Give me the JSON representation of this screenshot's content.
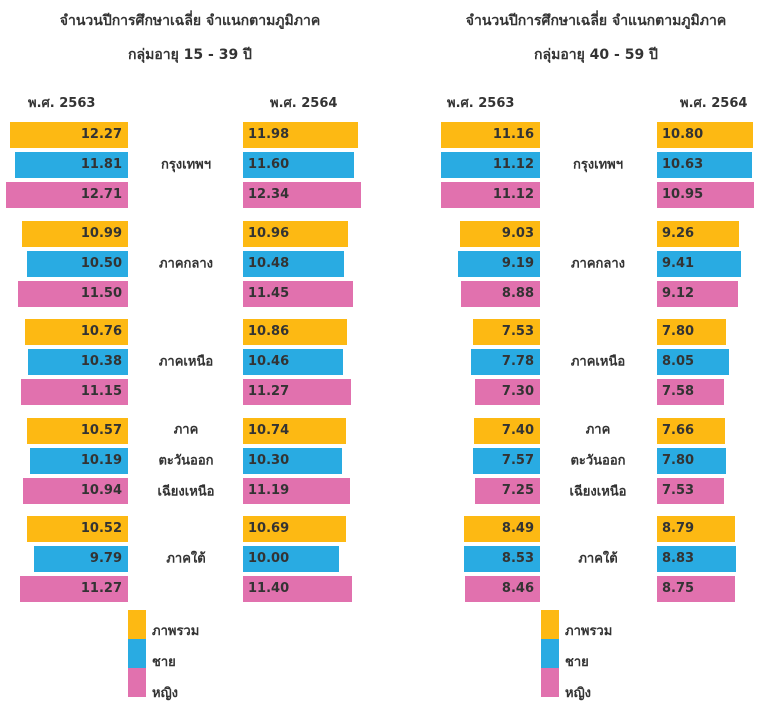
{
  "chart_data": [
    {
      "type": "butterfly-bar",
      "title": "จำนวนปีการศึกษาเฉลี่ย จำแนกตามภูมิภาค",
      "subtitle": "กลุ่มอายุ 15 - 39 ปี",
      "categories": [
        "กรุงเทพฯ",
        "ภาคกลาง",
        "ภาคเหนือ",
        "ภาค\nตะวันออก\nเฉียงเหนือ",
        "ภาคใต้"
      ],
      "legend": [
        {
          "name": "ภาพรวม",
          "color": "#fdb913"
        },
        {
          "name": "ชาย",
          "color": "#29abe2"
        },
        {
          "name": "หญิง",
          "color": "#e171ae"
        }
      ],
      "panels": [
        {
          "label": "พ.ศ. 2563",
          "series": [
            {
              "values": [
                12.27,
                10.99,
                10.76,
                10.57,
                10.52
              ],
              "value_labels": [
                "12.27",
                "10.99",
                "10.76",
                "10.57",
                "10.52"
              ]
            },
            {
              "values": [
                11.81,
                10.5,
                10.38,
                10.19,
                9.79
              ],
              "value_labels": [
                "11.81",
                "10.50",
                "10.38",
                "10.19",
                "9.79"
              ]
            },
            {
              "values": [
                12.71,
                11.5,
                11.15,
                10.94,
                11.27
              ],
              "value_labels": [
                "12.71",
                "11.50",
                "11.15",
                "10.94",
                "11.27"
              ]
            }
          ]
        },
        {
          "label": "พ.ศ. 2564",
          "series": [
            {
              "values": [
                11.98,
                10.96,
                10.86,
                10.74,
                10.69
              ],
              "value_labels": [
                "11.98",
                "10.96",
                "10.86",
                "10.74",
                "10.69"
              ]
            },
            {
              "values": [
                11.6,
                10.48,
                10.46,
                10.3,
                10
              ],
              "value_labels": [
                "11.60",
                "10.48",
                "10.46",
                "10.30",
                "10.00"
              ]
            },
            {
              "values": [
                12.34,
                11.45,
                11.27,
                11.19,
                11.4
              ],
              "value_labels": [
                "12.34",
                "11.45",
                "11.27",
                "11.19",
                "11.40"
              ]
            }
          ]
        }
      ]
    },
    {
      "type": "butterfly-bar",
      "title": "จำนวนปีการศึกษาเฉลี่ย จำแนกตามภูมิภาค",
      "subtitle": "กลุ่มอายุ 40 - 59 ปี",
      "categories": [
        "กรุงเทพฯ",
        "ภาคกลาง",
        "ภาคเหนือ",
        "ภาค\nตะวันออก\nเฉียงเหนือ",
        "ภาคใต้"
      ],
      "legend": [
        {
          "name": "ภาพรวม",
          "color": "#fdb913"
        },
        {
          "name": "ชาย",
          "color": "#29abe2"
        },
        {
          "name": "หญิง",
          "color": "#e171ae"
        }
      ],
      "panels": [
        {
          "label": "พ.ศ. 2563",
          "series": [
            {
              "values": [
                11.16,
                9.03,
                7.53,
                7.4,
                8.49
              ],
              "value_labels": [
                "11.16",
                "9.03",
                "7.53",
                "7.40",
                "8.49"
              ]
            },
            {
              "values": [
                11.12,
                9.19,
                7.78,
                7.57,
                8.53
              ],
              "value_labels": [
                "11.12",
                "9.19",
                "7.78",
                "7.57",
                "8.53"
              ]
            },
            {
              "values": [
                11.12,
                8.88,
                7.3,
                7.25,
                8.46
              ],
              "value_labels": [
                "11.12",
                "8.88",
                "7.30",
                "7.25",
                "8.46"
              ]
            }
          ]
        },
        {
          "label": "พ.ศ. 2564",
          "series": [
            {
              "values": [
                10.8,
                9.26,
                7.8,
                7.66,
                8.79
              ],
              "value_labels": [
                "10.80",
                "9.26",
                "7.80",
                "7.66",
                "8.79"
              ]
            },
            {
              "values": [
                10.63,
                9.41,
                8.05,
                7.8,
                8.83
              ],
              "value_labels": [
                "10.63",
                "9.41",
                "8.05",
                "7.80",
                "8.83"
              ]
            },
            {
              "values": [
                10.95,
                9.12,
                7.58,
                7.53,
                8.75
              ],
              "value_labels": [
                "10.95",
                "9.12",
                "7.58",
                "7.53",
                "8.75"
              ]
            }
          ]
        }
      ]
    }
  ]
}
